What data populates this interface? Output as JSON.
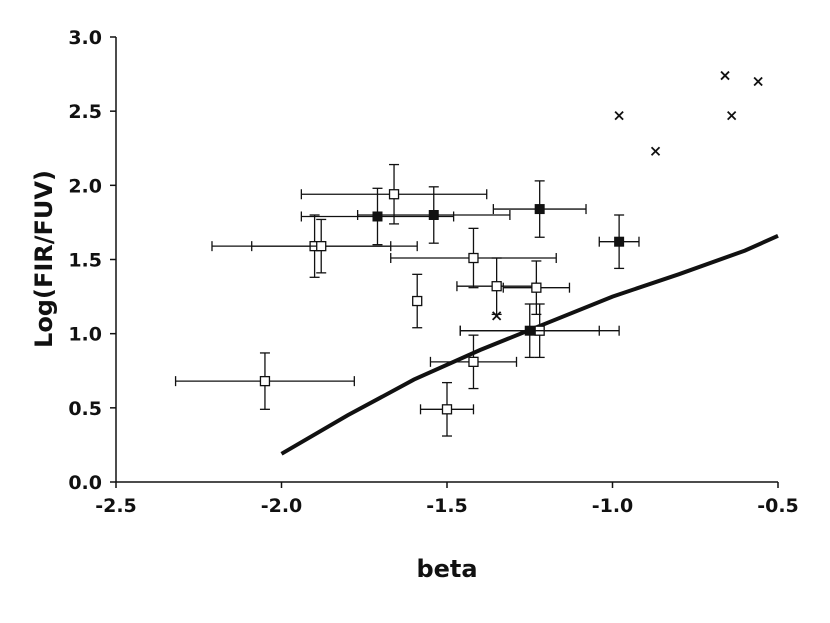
{
  "chart_data": {
    "type": "scatter",
    "title": "",
    "xlabel": "beta",
    "ylabel": "Log(FIR/FUV)",
    "xlim": [
      -2.5,
      -0.5
    ],
    "ylim": [
      0.0,
      3.0
    ],
    "x_ticks": [
      "-2.5",
      "-2.0",
      "-1.5",
      "-1.0",
      "-0.5"
    ],
    "y_ticks": [
      "0.0",
      "0.5",
      "1.0",
      "1.5",
      "2.0",
      "2.5",
      "3.0"
    ],
    "grid": false,
    "legend": "none",
    "colors": {
      "axis": "#111111",
      "marker": "#111111",
      "open_fill": "#ffffff",
      "curve": "#111111"
    },
    "series": [
      {
        "marker": "open-square",
        "points": [
          {
            "x": -2.05,
            "y": 0.68,
            "xerr": 0.27,
            "yerr": 0.19
          },
          {
            "x": -1.9,
            "y": 1.59,
            "xerr": 0.31,
            "yerr": 0.21
          },
          {
            "x": -1.88,
            "y": 1.59,
            "xerr": 0.21,
            "yerr": 0.18
          },
          {
            "x": -1.66,
            "y": 1.94,
            "xerr": 0.28,
            "yerr": 0.2
          },
          {
            "x": -1.59,
            "y": 1.22,
            "xerr": 0.0,
            "yerr": 0.18
          },
          {
            "x": -1.5,
            "y": 0.49,
            "xerr": 0.08,
            "yerr": 0.18
          },
          {
            "x": -1.42,
            "y": 1.51,
            "xerr": 0.25,
            "yerr": 0.2
          },
          {
            "x": -1.42,
            "y": 0.81,
            "xerr": 0.13,
            "yerr": 0.18
          },
          {
            "x": -1.35,
            "y": 1.32,
            "xerr": 0.12,
            "yerr": 0.19
          },
          {
            "x": -1.23,
            "y": 1.31,
            "xerr": 0.1,
            "yerr": 0.18
          },
          {
            "x": -1.22,
            "y": 1.02,
            "xerr": 0.24,
            "yerr": 0.18
          }
        ]
      },
      {
        "marker": "filled-square",
        "points": [
          {
            "x": -1.71,
            "y": 1.79,
            "xerr": 0.23,
            "yerr": 0.19
          },
          {
            "x": -1.54,
            "y": 1.8,
            "xerr": 0.23,
            "yerr": 0.19
          },
          {
            "x": -1.25,
            "y": 1.02,
            "xerr": 0.21,
            "yerr": 0.18
          },
          {
            "x": -1.22,
            "y": 1.84,
            "xerr": 0.14,
            "yerr": 0.19
          },
          {
            "x": -0.98,
            "y": 1.62,
            "xerr": 0.06,
            "yerr": 0.18
          }
        ]
      },
      {
        "marker": "cross",
        "points": [
          {
            "x": -1.35,
            "y": 1.12
          },
          {
            "x": -0.98,
            "y": 2.47
          },
          {
            "x": -0.87,
            "y": 2.23
          },
          {
            "x": -0.66,
            "y": 2.74
          },
          {
            "x": -0.64,
            "y": 2.47
          },
          {
            "x": -0.56,
            "y": 2.7
          }
        ]
      }
    ],
    "curve": {
      "x": [
        -2.0,
        -1.8,
        -1.6,
        -1.4,
        -1.2,
        -1.0,
        -0.8,
        -0.6,
        -0.5
      ],
      "y": [
        0.19,
        0.45,
        0.69,
        0.89,
        1.07,
        1.25,
        1.4,
        1.56,
        1.66
      ]
    }
  }
}
